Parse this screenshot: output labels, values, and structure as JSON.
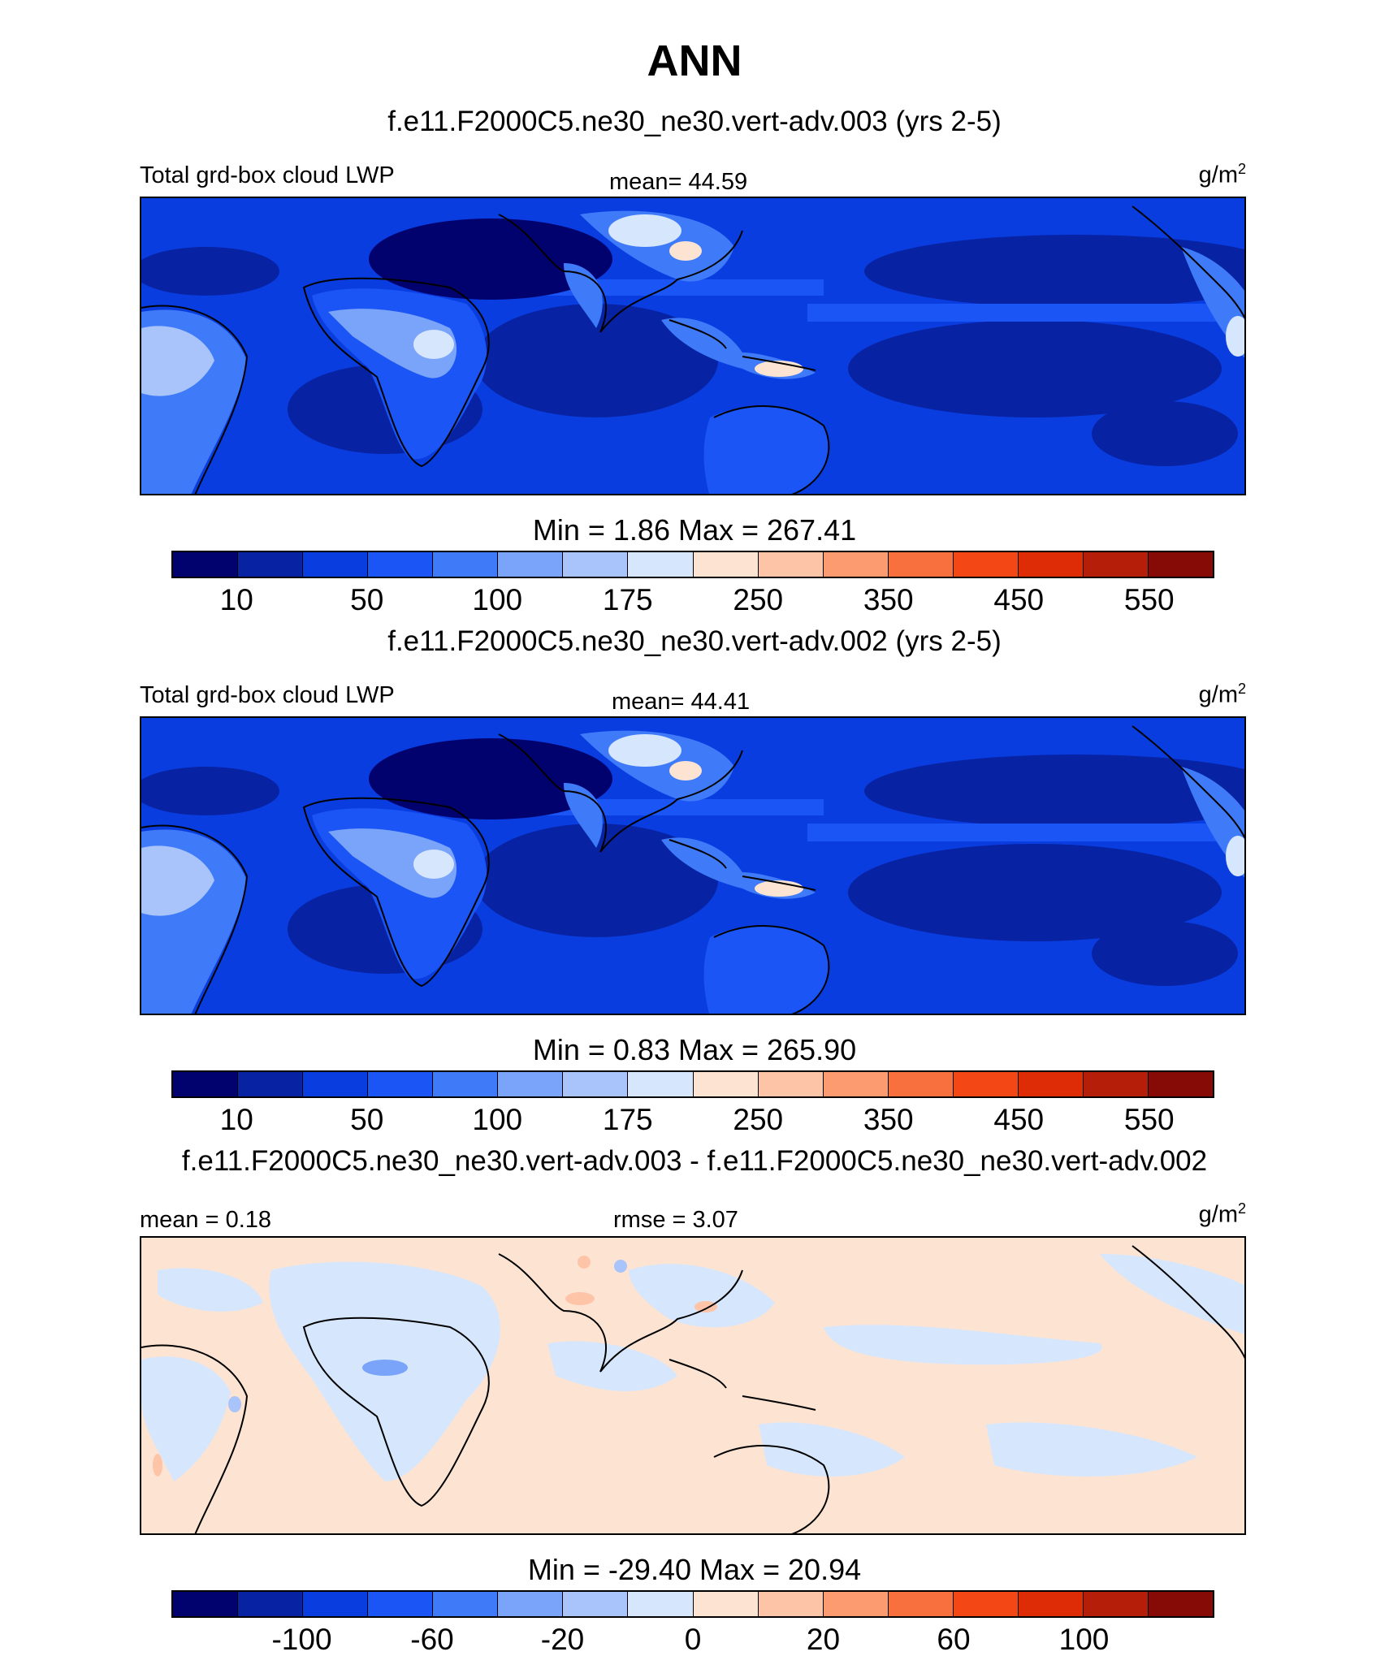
{
  "title": "ANN",
  "colorbar_colors": [
    "#02026e",
    "#0723a3",
    "#0a3de0",
    "#1b55f5",
    "#3f7bf8",
    "#7aa3fa",
    "#a9c4fb",
    "#d6e6fd",
    "#fde4d2",
    "#fdc4a8",
    "#fc9b70",
    "#f9703f",
    "#f34815",
    "#de2d06",
    "#b51e08",
    "#860a05"
  ],
  "panels": [
    {
      "case_title": "f.e11.F2000C5.ne30_ne30.vert-adv.003 (yrs 2-5)",
      "variable_label": "Total grd-box cloud LWP",
      "stat_label": "mean=  44.59",
      "units": "g/m",
      "units_sup": "2",
      "minmax": "Min =    1.86 Max = 267.41",
      "ticks": [
        "10",
        "50",
        "100",
        "175",
        "250",
        "350",
        "450",
        "550"
      ]
    },
    {
      "case_title": "f.e11.F2000C5.ne30_ne30.vert-adv.002 (yrs 2-5)",
      "variable_label": "Total grd-box cloud LWP",
      "stat_label": "mean=  44.41",
      "units": "g/m",
      "units_sup": "2",
      "minmax": "Min =    0.83 Max = 265.90",
      "ticks": [
        "10",
        "50",
        "100",
        "175",
        "250",
        "350",
        "450",
        "550"
      ]
    },
    {
      "case_title": "f.e11.F2000C5.ne30_ne30.vert-adv.003 - f.e11.F2000C5.ne30_ne30.vert-adv.002",
      "variable_label": "mean =   0.18",
      "stat_label": "rmse =   3.07",
      "units": "g/m",
      "units_sup": "2",
      "minmax": "Min = -29.40 Max =  20.94",
      "ticks": [
        "-100",
        "-60",
        "-20",
        "0",
        "20",
        "60",
        "100"
      ]
    }
  ]
}
